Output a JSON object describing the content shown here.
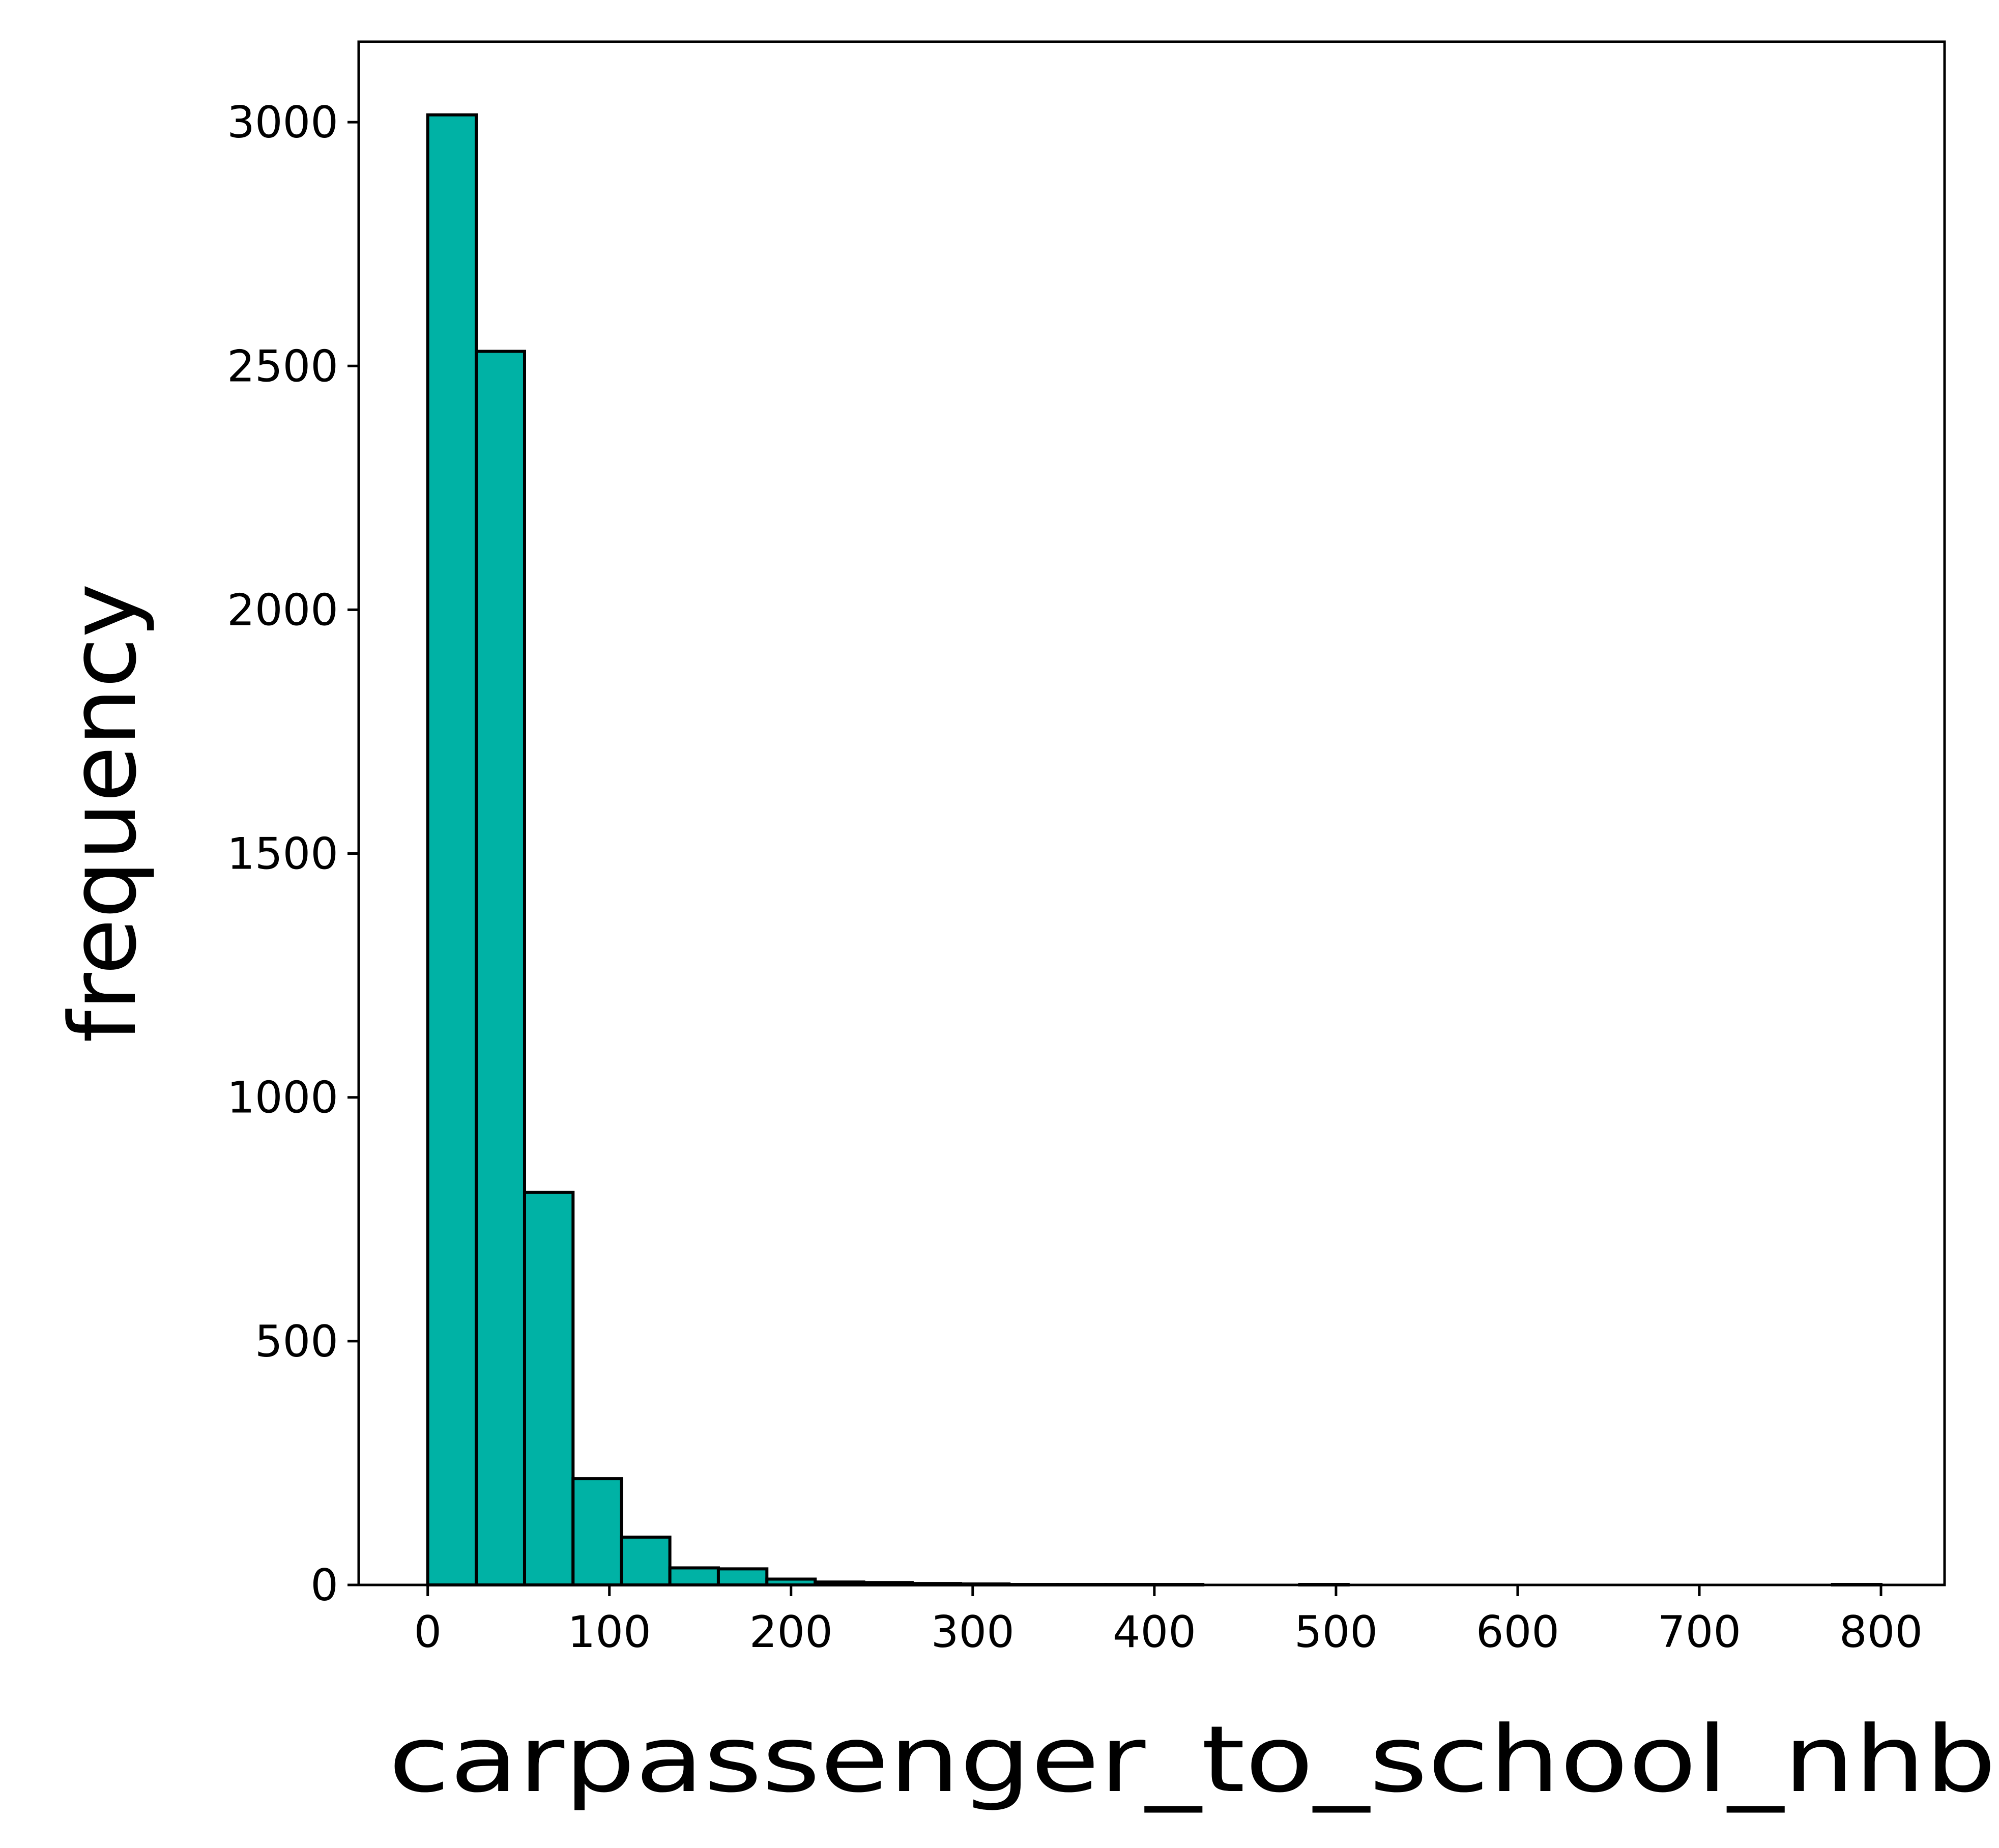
{
  "chart_data": {
    "type": "bar",
    "title": "",
    "xlabel": "carpassenger_to_school_nhb",
    "ylabel": "frequency",
    "xlim": [
      -38,
      835
    ],
    "ylim": [
      0,
      3165
    ],
    "xticks": [
      0,
      100,
      200,
      300,
      400,
      500,
      600,
      700,
      800
    ],
    "yticks": [
      0,
      500,
      1000,
      1500,
      2000,
      2500,
      3000
    ],
    "bin_edges": [
      0,
      26.7,
      53.3,
      80,
      106.7,
      133.3,
      160,
      186.7,
      213.3,
      240,
      266.7,
      293.3,
      320,
      346.7,
      373.3,
      400,
      426.7,
      453.3,
      480,
      506.7,
      533.3,
      560,
      586.7,
      613.3,
      640,
      666.7,
      693.3,
      720,
      746.7,
      773.3,
      800
    ],
    "values": [
      3015,
      2530,
      805,
      218,
      98,
      35,
      33,
      12,
      6,
      5,
      3,
      2,
      1,
      1,
      1,
      1,
      0,
      0,
      1,
      0,
      0,
      0,
      0,
      0,
      0,
      0,
      0,
      0,
      0,
      1
    ],
    "grid": false,
    "legend": "none",
    "colors": {
      "bar_fill": "#00b2a5",
      "bar_edge": "#000000",
      "axis": "#000000",
      "background": "#ffffff"
    }
  }
}
